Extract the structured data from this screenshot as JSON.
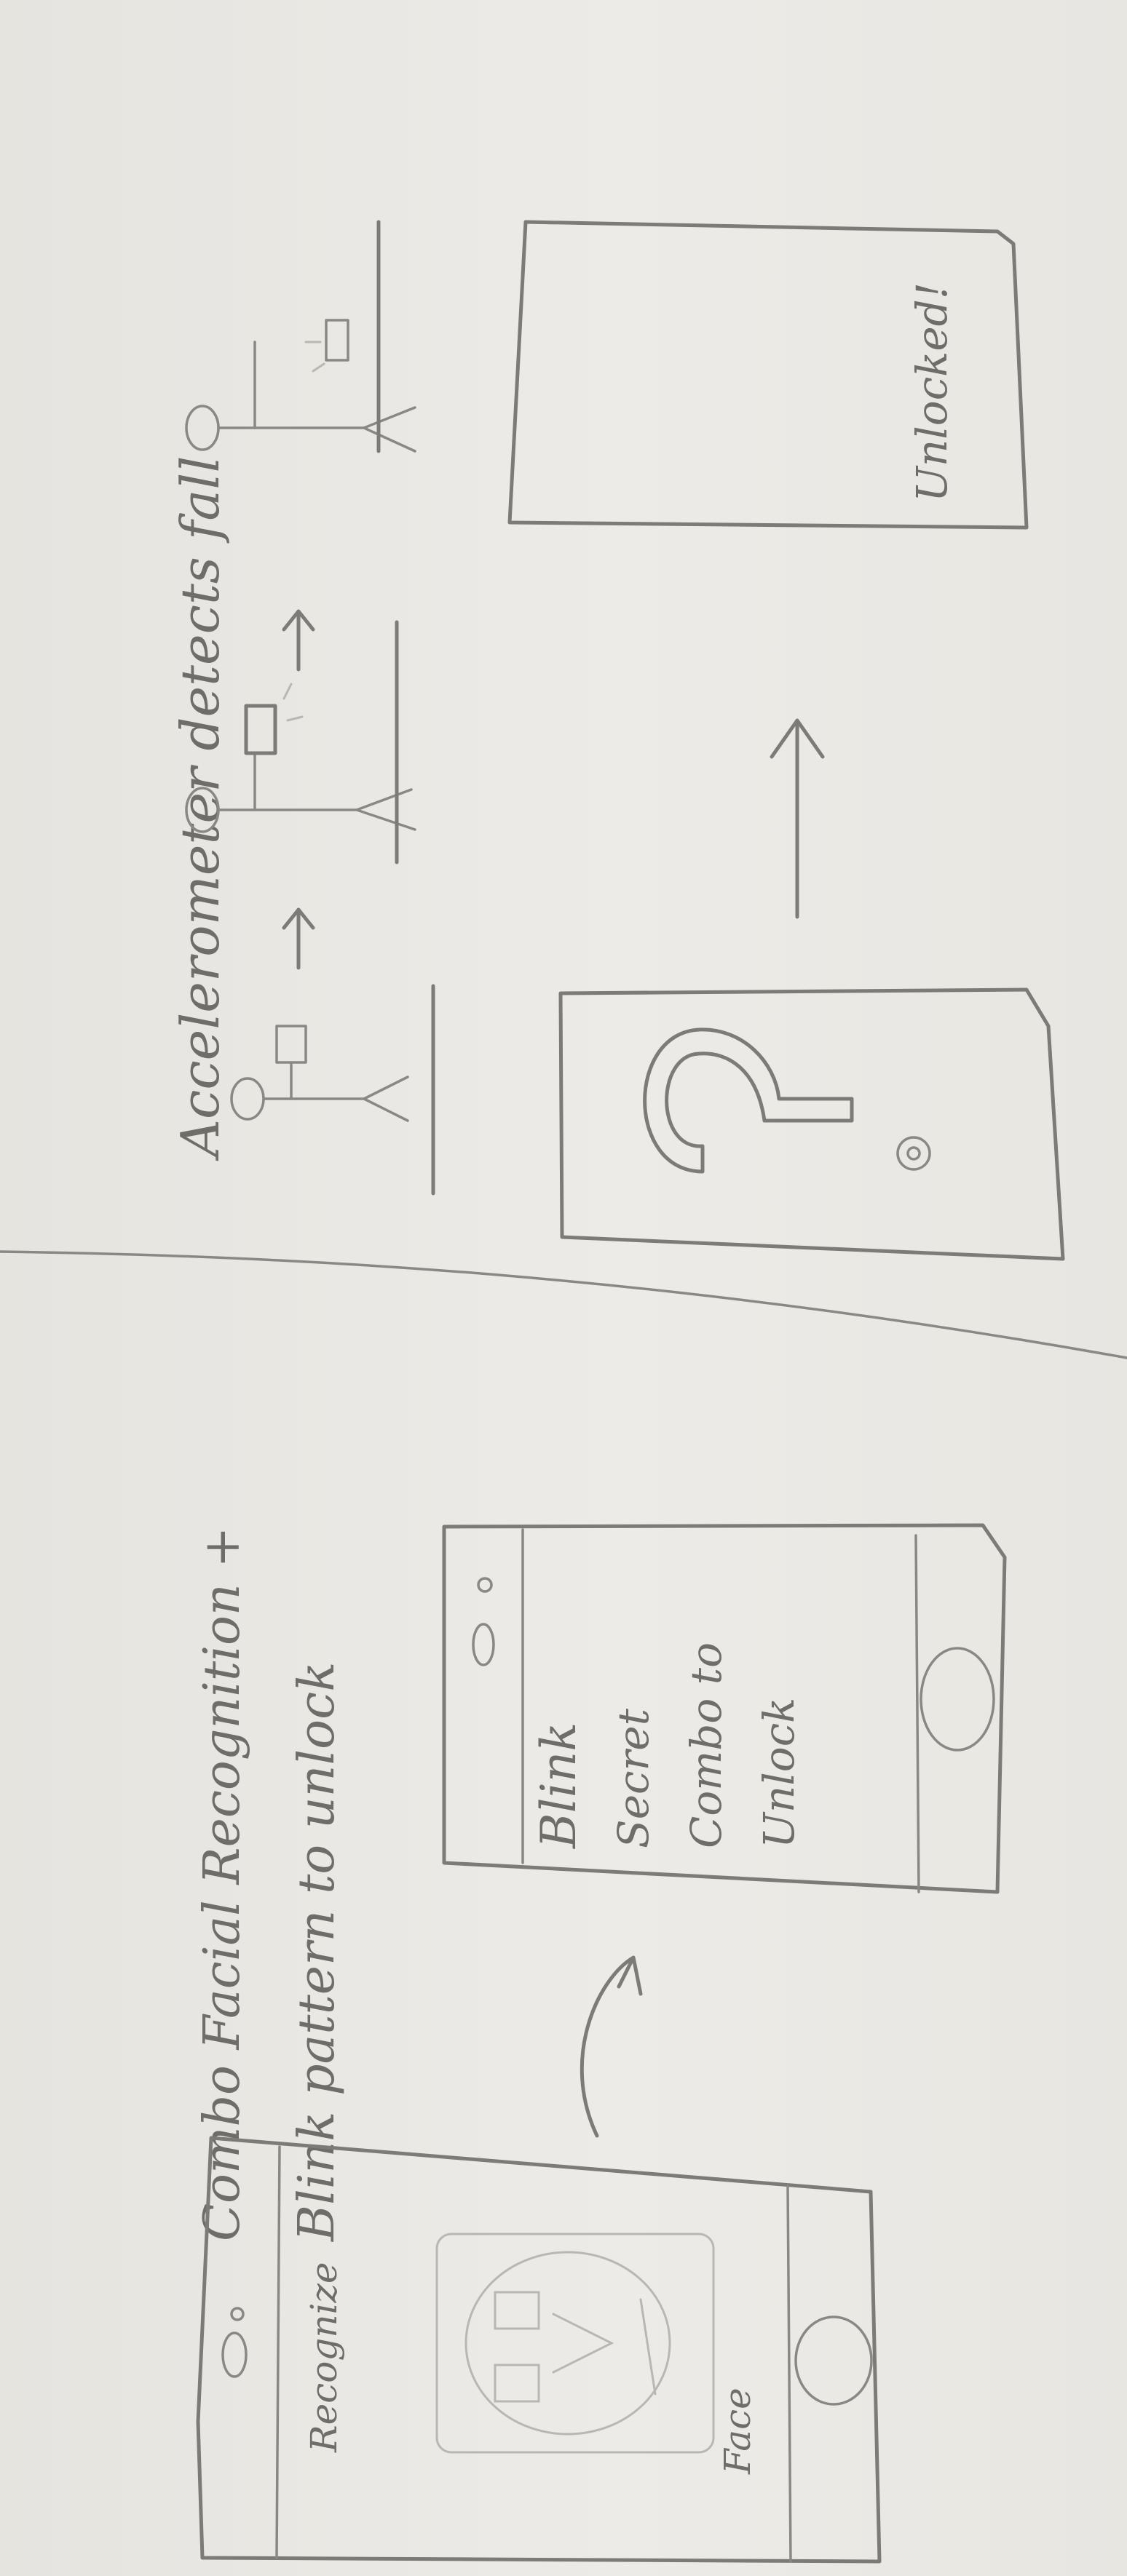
{
  "storyboards": {
    "facial": {
      "title_line1": "Combo Facial Recognition +",
      "title_line2": "Blink pattern to unlock",
      "screen1": {
        "label_top": "Recognize",
        "label_bottom": "Face"
      },
      "screen2": {
        "line1": "Blink",
        "line2": "Secret",
        "line3": "Combo to",
        "line4": "Unlock"
      }
    },
    "fall": {
      "title": "Accelerometer detects fall",
      "screen_result": {
        "label": "Unlocked!"
      }
    }
  }
}
